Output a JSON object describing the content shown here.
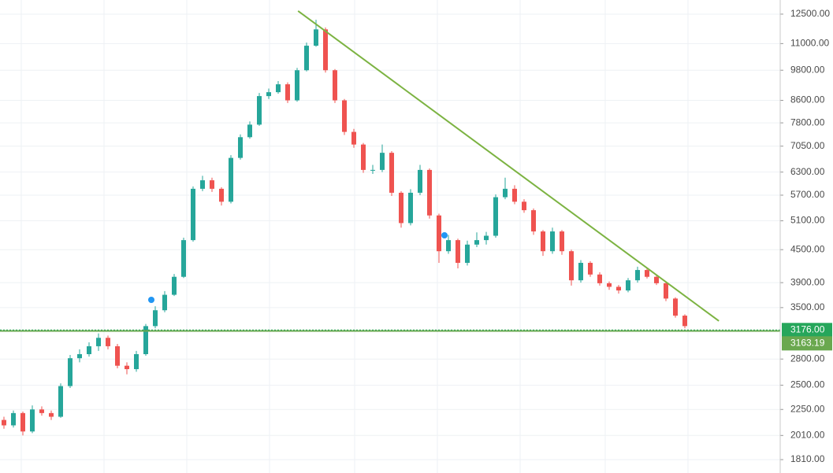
{
  "chart_data": {
    "type": "candlestick",
    "log_scale": true,
    "grid": true,
    "up_color": "#26a69a",
    "down_color": "#ef5350",
    "open": [
      2150,
      2100,
      2215,
      2045,
      2250,
      2215,
      2180,
      2490,
      2810,
      2860,
      2960,
      3070,
      2960,
      2720,
      2680,
      2860,
      3230,
      3460,
      3700,
      4000,
      4690,
      5860,
      6080,
      5860,
      5540,
      6700,
      7330,
      7740,
      8760,
      8910,
      9220,
      8600,
      9800,
      10900,
      11700,
      9800,
      8600,
      7500,
      7100,
      6360,
      6360,
      6850,
      5760,
      5050,
      5760,
      6360,
      5220,
      4470,
      4690,
      4250,
      4600,
      4690,
      4780,
      5650,
      5860,
      5540,
      5340,
      4870,
      4470,
      4870,
      4470,
      3940,
      4250,
      4040,
      3890,
      3830,
      3770,
      3940,
      4120,
      4000,
      3890,
      3640,
      3380
    ],
    "high": [
      2180,
      2240,
      2230,
      2290,
      2280,
      2240,
      2520,
      2850,
      2920,
      3010,
      3130,
      3100,
      2990,
      2760,
      2900,
      3260,
      3520,
      3760,
      4050,
      4740,
      5920,
      6200,
      6150,
      5900,
      6780,
      7420,
      7850,
      8880,
      9050,
      9350,
      9300,
      9900,
      11050,
      12200,
      11800,
      9850,
      8650,
      7600,
      7150,
      6500,
      7100,
      6900,
      5800,
      5850,
      6500,
      6400,
      5260,
      4800,
      4720,
      4680,
      4850,
      4860,
      5720,
      6150,
      5950,
      5600,
      5380,
      4900,
      4950,
      4900,
      4500,
      4300,
      4280,
      4080,
      3920,
      3860,
      3980,
      4180,
      4150,
      4030,
      3910,
      3660,
      3400
    ],
    "low": [
      2070,
      2080,
      2010,
      2030,
      2190,
      2150,
      2170,
      2470,
      2760,
      2830,
      2900,
      2920,
      2690,
      2620,
      2650,
      2840,
      3200,
      3430,
      3680,
      3980,
      4660,
      5800,
      5780,
      5450,
      5500,
      6650,
      7280,
      7700,
      8650,
      8850,
      8500,
      8550,
      9750,
      10850,
      9700,
      8500,
      7400,
      7000,
      6280,
      6250,
      6300,
      5680,
      4950,
      5000,
      5700,
      5150,
      4250,
      4420,
      4150,
      4200,
      4550,
      4600,
      4740,
      5600,
      5480,
      5280,
      4800,
      4380,
      4420,
      4400,
      3850,
      3900,
      4000,
      3850,
      3780,
      3720,
      3740,
      3900,
      3970,
      3860,
      3600,
      3350,
      3200
    ],
    "close": [
      2100,
      2215,
      2045,
      2250,
      2215,
      2180,
      2490,
      2810,
      2860,
      2960,
      3070,
      2960,
      2720,
      2680,
      2860,
      3230,
      3460,
      3700,
      4000,
      4690,
      5860,
      6080,
      5860,
      5540,
      6700,
      7330,
      7740,
      8760,
      8910,
      9220,
      8600,
      9800,
      10900,
      11700,
      9800,
      8600,
      7500,
      7100,
      6360,
      6360,
      6850,
      5760,
      5050,
      5760,
      6360,
      5220,
      4470,
      4690,
      4250,
      4600,
      4690,
      4780,
      5650,
      5860,
      5540,
      5340,
      4870,
      4470,
      4870,
      4470,
      3940,
      4250,
      4040,
      3890,
      3830,
      3770,
      3940,
      4120,
      4000,
      3890,
      3640,
      3380,
      3230
    ],
    "ylim": [
      1708,
      13290
    ],
    "yticks": [
      {
        "value": 12500,
        "label": "12500.00"
      },
      {
        "value": 11000,
        "label": "11000.00"
      },
      {
        "value": 9800,
        "label": "9800.00"
      },
      {
        "value": 8600,
        "label": "8600.00"
      },
      {
        "value": 7800,
        "label": "7800.00"
      },
      {
        "value": 7050,
        "label": "7050.00"
      },
      {
        "value": 6300,
        "label": "6300.00"
      },
      {
        "value": 5700,
        "label": "5700.00"
      },
      {
        "value": 5100,
        "label": "5100.00"
      },
      {
        "value": 4500,
        "label": "4500.00"
      },
      {
        "value": 3900,
        "label": "3900.00"
      },
      {
        "value": 3500,
        "label": "3500.00"
      },
      {
        "value": 2800,
        "label": "2800.00"
      },
      {
        "value": 2500,
        "label": "2500.00"
      },
      {
        "value": 2250,
        "label": "2250.00"
      },
      {
        "value": 2010,
        "label": "2010.00"
      },
      {
        "value": 1810,
        "label": "1810.00"
      }
    ],
    "price_line": {
      "value": 3176,
      "label": "3176.00",
      "color": "#26a65b"
    },
    "horizontal_line": {
      "value": 3163.19,
      "label": "3163.19",
      "color": "#6aa84f"
    },
    "trendline": {
      "x": [
        31.1,
        75.6
      ],
      "y": [
        12672,
        3303
      ],
      "color": "#7cb342"
    }
  }
}
